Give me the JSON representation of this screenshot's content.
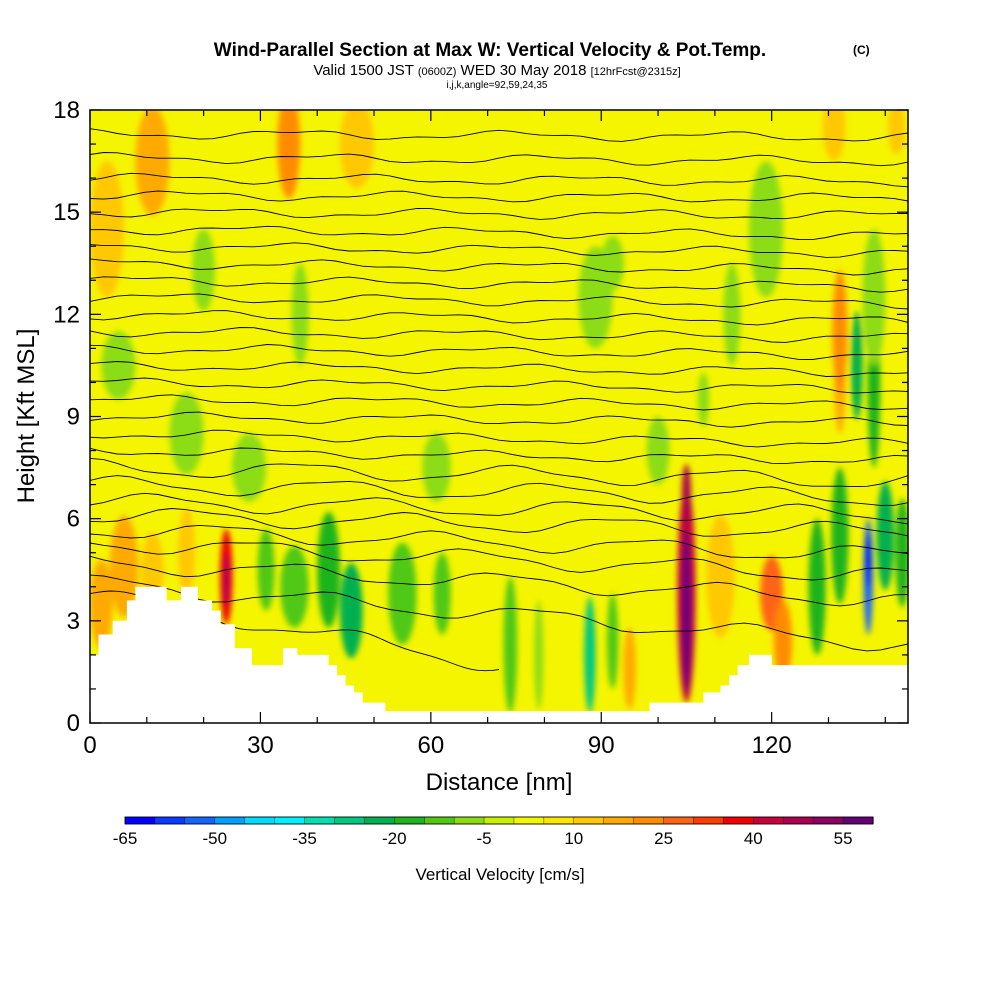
{
  "header": {
    "title_main": "Wind-Parallel Section at Max W: Vertical Velocity & Pot.Temp.",
    "title_mark": "(C)",
    "valid_a": "Valid 1500 JST",
    "valid_b": "(0600Z)",
    "valid_c": "WED 30 May 2018",
    "valid_d": "[12hrFcst@2315z]",
    "indices": "i,j,k,angle=92,59,24,35"
  },
  "chart_data": {
    "type": "heatmap",
    "xlabel": "Distance [nm]",
    "ylabel": "Height [Kft MSL]",
    "xlim": [
      0,
      144
    ],
    "ylim": [
      0,
      18
    ],
    "x_ticks": [
      0,
      30,
      60,
      90,
      120
    ],
    "y_ticks": [
      0,
      3,
      6,
      9,
      12,
      15,
      18
    ],
    "background_value": 0,
    "terrain_kft": [
      [
        0,
        2
      ],
      [
        1.5,
        2
      ],
      [
        1.5,
        2.6
      ],
      [
        4,
        2.6
      ],
      [
        4,
        3
      ],
      [
        6.5,
        3
      ],
      [
        6.5,
        3.6
      ],
      [
        8,
        3.6
      ],
      [
        8,
        4
      ],
      [
        13.5,
        4
      ],
      [
        13.5,
        3.6
      ],
      [
        16,
        3.6
      ],
      [
        16,
        4
      ],
      [
        19,
        4
      ],
      [
        19,
        3.6
      ],
      [
        21.5,
        3.6
      ],
      [
        21.5,
        3.3
      ],
      [
        23,
        3.3
      ],
      [
        23,
        2.9
      ],
      [
        25.5,
        2.9
      ],
      [
        25.5,
        2.2
      ],
      [
        28.5,
        2.2
      ],
      [
        28.5,
        1.7
      ],
      [
        34,
        1.7
      ],
      [
        34,
        2.2
      ],
      [
        36.5,
        2.2
      ],
      [
        36.5,
        2
      ],
      [
        42,
        2
      ],
      [
        42,
        1.7
      ],
      [
        43.5,
        1.7
      ],
      [
        43.5,
        1.4
      ],
      [
        45,
        1.4
      ],
      [
        45,
        1.1
      ],
      [
        46.5,
        1.1
      ],
      [
        46.5,
        0.9
      ],
      [
        48,
        0.9
      ],
      [
        48,
        0.6
      ],
      [
        52,
        0.6
      ],
      [
        52,
        0.35
      ],
      [
        98.5,
        0.35
      ],
      [
        98.5,
        0.6
      ],
      [
        108,
        0.6
      ],
      [
        108,
        0.9
      ],
      [
        111,
        0.9
      ],
      [
        111,
        1.1
      ],
      [
        112.5,
        1.1
      ],
      [
        112.5,
        1.4
      ],
      [
        114,
        1.4
      ],
      [
        114,
        1.7
      ],
      [
        116,
        1.7
      ],
      [
        116,
        2
      ],
      [
        120,
        2
      ],
      [
        120,
        1.7
      ],
      [
        144,
        1.7
      ],
      [
        144,
        0
      ],
      [
        0,
        0
      ]
    ],
    "cells": [
      {
        "x": 2,
        "y": 3.5,
        "rx": 2,
        "ry": 1.3,
        "w": 15
      },
      {
        "x": 6,
        "y": 4.6,
        "rx": 2.5,
        "ry": 1.5,
        "w": 15
      },
      {
        "x": 11,
        "y": 4.4,
        "rx": 2,
        "ry": 1.2,
        "w": 12
      },
      {
        "x": 17,
        "y": 5.0,
        "rx": 1.5,
        "ry": 1.3,
        "w": 12
      },
      {
        "x": 24,
        "y": 4.3,
        "rx": 1.1,
        "ry": 1.4,
        "w": 35
      },
      {
        "x": 24,
        "y": 4.2,
        "rx": 0.5,
        "ry": 0.8,
        "w": 45
      },
      {
        "x": 36,
        "y": 4.0,
        "rx": 2.5,
        "ry": 1.2,
        "w": -15
      },
      {
        "x": 31,
        "y": 4.5,
        "rx": 1.5,
        "ry": 1.2,
        "w": -15
      },
      {
        "x": 42,
        "y": 4.5,
        "rx": 2,
        "ry": 1.7,
        "w": -20
      },
      {
        "x": 46,
        "y": 3.3,
        "rx": 2,
        "ry": 1.4,
        "w": -25
      },
      {
        "x": 55,
        "y": 3.8,
        "rx": 2.5,
        "ry": 1.5,
        "w": -15
      },
      {
        "x": 62,
        "y": 3.8,
        "rx": 1.5,
        "ry": 1.2,
        "w": -15
      },
      {
        "x": 74,
        "y": 2.3,
        "rx": 1.2,
        "ry": 2,
        "w": -15
      },
      {
        "x": 79,
        "y": 2.0,
        "rx": 0.8,
        "ry": 1.6,
        "w": -10
      },
      {
        "x": 88,
        "y": 2.0,
        "rx": 1,
        "ry": 1.7,
        "w": -30
      },
      {
        "x": 92,
        "y": 2.4,
        "rx": 1,
        "ry": 1.4,
        "w": -15
      },
      {
        "x": 95,
        "y": 1.6,
        "rx": 1.1,
        "ry": 1.2,
        "w": 15
      },
      {
        "x": 105,
        "y": 3.8,
        "rx": 1.6,
        "ry": 3.2,
        "w": 40
      },
      {
        "x": 105,
        "y": 3.3,
        "rx": 0.8,
        "ry": 2.4,
        "w": 55
      },
      {
        "x": 105,
        "y": 6.7,
        "rx": 0.8,
        "ry": 0.9,
        "w": 45
      },
      {
        "x": 111,
        "y": 4.3,
        "rx": 2.5,
        "ry": 1.8,
        "w": 12
      },
      {
        "x": 120,
        "y": 3.8,
        "rx": 2,
        "ry": 1.1,
        "w": 25
      },
      {
        "x": 122,
        "y": 2.4,
        "rx": 1.6,
        "ry": 1.2,
        "w": 20
      },
      {
        "x": 128,
        "y": 4.0,
        "rx": 1.5,
        "ry": 2,
        "w": -20
      },
      {
        "x": 132,
        "y": 5.5,
        "rx": 1.5,
        "ry": 2,
        "w": -20
      },
      {
        "x": 137,
        "y": 4.3,
        "rx": 0.8,
        "ry": 1.7,
        "w": -55
      },
      {
        "x": 137,
        "y": 4.8,
        "rx": 0.5,
        "ry": 0.8,
        "w": -65
      },
      {
        "x": 140,
        "y": 5.5,
        "rx": 1.5,
        "ry": 1.6,
        "w": -25
      },
      {
        "x": 132,
        "y": 10,
        "rx": 1,
        "ry": 1.5,
        "w": 15
      },
      {
        "x": 135,
        "y": 10.5,
        "rx": 1,
        "ry": 1.6,
        "w": -25
      },
      {
        "x": 138,
        "y": 10.0,
        "rx": 1.1,
        "ry": 2.5,
        "w": -20
      },
      {
        "x": 132,
        "y": 11.5,
        "rx": 1.3,
        "ry": 1.8,
        "w": 20
      },
      {
        "x": 143,
        "y": 5.0,
        "rx": 1.2,
        "ry": 1.6,
        "w": -20
      },
      {
        "x": 11,
        "y": 16.5,
        "rx": 3,
        "ry": 1.6,
        "w": 15
      },
      {
        "x": 35,
        "y": 17,
        "rx": 2,
        "ry": 1.6,
        "w": 20
      },
      {
        "x": 47,
        "y": 17,
        "rx": 3,
        "ry": 1.3,
        "w": 12
      },
      {
        "x": 3,
        "y": 14.5,
        "rx": 3,
        "ry": 2,
        "w": 12
      },
      {
        "x": 20,
        "y": 13.3,
        "rx": 2,
        "ry": 1.2,
        "w": -10
      },
      {
        "x": 37,
        "y": 12,
        "rx": 1.5,
        "ry": 1.5,
        "w": -10
      },
      {
        "x": 89,
        "y": 12.5,
        "rx": 3,
        "ry": 1.5,
        "w": -10
      },
      {
        "x": 92,
        "y": 13.5,
        "rx": 2,
        "ry": 0.8,
        "w": -10
      },
      {
        "x": 119,
        "y": 14.5,
        "rx": 3,
        "ry": 2,
        "w": -10
      },
      {
        "x": 113,
        "y": 12,
        "rx": 1.5,
        "ry": 1.5,
        "w": -10
      },
      {
        "x": 138,
        "y": 12.5,
        "rx": 2,
        "ry": 2,
        "w": -10
      },
      {
        "x": 142,
        "y": 17.5,
        "rx": 1.5,
        "ry": 0.8,
        "w": 12
      },
      {
        "x": 131,
        "y": 17.5,
        "rx": 2,
        "ry": 1,
        "w": 12
      },
      {
        "x": 17,
        "y": 8.5,
        "rx": 3,
        "ry": 1.2,
        "w": -10
      },
      {
        "x": 5,
        "y": 10.5,
        "rx": 3,
        "ry": 1,
        "w": -10
      },
      {
        "x": 28,
        "y": 7.5,
        "rx": 3,
        "ry": 1,
        "w": -10
      },
      {
        "x": 61,
        "y": 7.5,
        "rx": 2.5,
        "ry": 1,
        "w": -10
      },
      {
        "x": 100,
        "y": 8,
        "rx": 2,
        "ry": 1,
        "w": -10
      },
      {
        "x": 108,
        "y": 9.5,
        "rx": 1,
        "ry": 0.8,
        "w": -10
      }
    ],
    "theta_lines": [
      {
        "f": [
          0,
          0.5
        ],
        "y0": 3.8,
        "y1": 1.7
      },
      {
        "f": [
          0,
          1
        ],
        "y0": 4.1,
        "y1": 2.3
      },
      {
        "f": [
          0,
          1
        ],
        "y0": 4.7,
        "y1": 3.6
      },
      {
        "f": [
          0,
          1
        ],
        "y0": 5.3,
        "y1": 4.3
      },
      {
        "f": [
          0,
          1
        ],
        "y0": 5.7,
        "y1": 4.9
      },
      {
        "f": [
          0,
          1
        ],
        "y0": 6.1,
        "y1": 5.6
      },
      {
        "f": [
          0,
          1
        ],
        "y0": 6.5,
        "y1": 6.1
      },
      {
        "f": [
          0,
          1
        ],
        "y0": 7.0,
        "y1": 6.6
      },
      {
        "f": [
          0,
          1
        ],
        "y0": 7.5,
        "y1": 7.1
      },
      {
        "f": [
          0,
          1
        ],
        "y0": 8.0,
        "y1": 7.7
      },
      {
        "f": [
          0,
          1
        ],
        "y0": 8.5,
        "y1": 8.2
      },
      {
        "f": [
          0,
          1
        ],
        "y0": 9.0,
        "y1": 8.8
      },
      {
        "f": [
          0,
          1
        ],
        "y0": 9.5,
        "y1": 9.3
      },
      {
        "f": [
          0,
          1
        ],
        "y0": 10.0,
        "y1": 9.8
      },
      {
        "f": [
          0,
          1
        ],
        "y0": 10.5,
        "y1": 10.3
      },
      {
        "f": [
          0,
          1
        ],
        "y0": 11.0,
        "y1": 10.8
      },
      {
        "f": [
          0,
          1
        ],
        "y0": 11.5,
        "y1": 11.3
      },
      {
        "f": [
          0,
          1
        ],
        "y0": 12.0,
        "y1": 11.8
      },
      {
        "f": [
          0,
          1
        ],
        "y0": 12.5,
        "y1": 12.3
      },
      {
        "f": [
          0,
          1
        ],
        "y0": 13.0,
        "y1": 12.8
      },
      {
        "f": [
          0,
          1
        ],
        "y0": 13.5,
        "y1": 13.3
      },
      {
        "f": [
          0,
          1
        ],
        "y0": 14.0,
        "y1": 13.8
      },
      {
        "f": [
          0,
          1
        ],
        "y0": 14.5,
        "y1": 14.3
      },
      {
        "f": [
          0,
          1
        ],
        "y0": 15.0,
        "y1": 14.9
      },
      {
        "f": [
          0,
          1
        ],
        "y0": 15.5,
        "y1": 15.4
      },
      {
        "f": [
          0,
          1
        ],
        "y0": 16.0,
        "y1": 15.9
      },
      {
        "f": [
          0,
          1
        ],
        "y0": 16.6,
        "y1": 16.5
      },
      {
        "f": [
          0,
          1
        ],
        "y0": 17.3,
        "y1": 17.2
      }
    ],
    "colorbar": {
      "label": "Vertical Velocity [cm/s]",
      "tick_labels": [
        "-65",
        "-50",
        "-35",
        "-20",
        "-5",
        "10",
        "25",
        "40",
        "55"
      ],
      "levels": [
        -65,
        -60,
        -55,
        -50,
        -45,
        -40,
        -35,
        -30,
        -25,
        -20,
        -15,
        -10,
        -5,
        0,
        5,
        10,
        15,
        20,
        25,
        30,
        35,
        40,
        45,
        50,
        55,
        60
      ],
      "colors": [
        "#0000ff",
        "#0a3cff",
        "#1464ff",
        "#00a0ff",
        "#00dcff",
        "#00f0ff",
        "#00e0b0",
        "#00c880",
        "#00b050",
        "#1eb41e",
        "#50c814",
        "#8cdc14",
        "#c8f000",
        "#f5f500",
        "#ffe600",
        "#ffc800",
        "#ffaa00",
        "#ff8c00",
        "#ff6414",
        "#ff3c00",
        "#f00000",
        "#c8003c",
        "#aa0050",
        "#8c0064",
        "#640078"
      ]
    }
  }
}
